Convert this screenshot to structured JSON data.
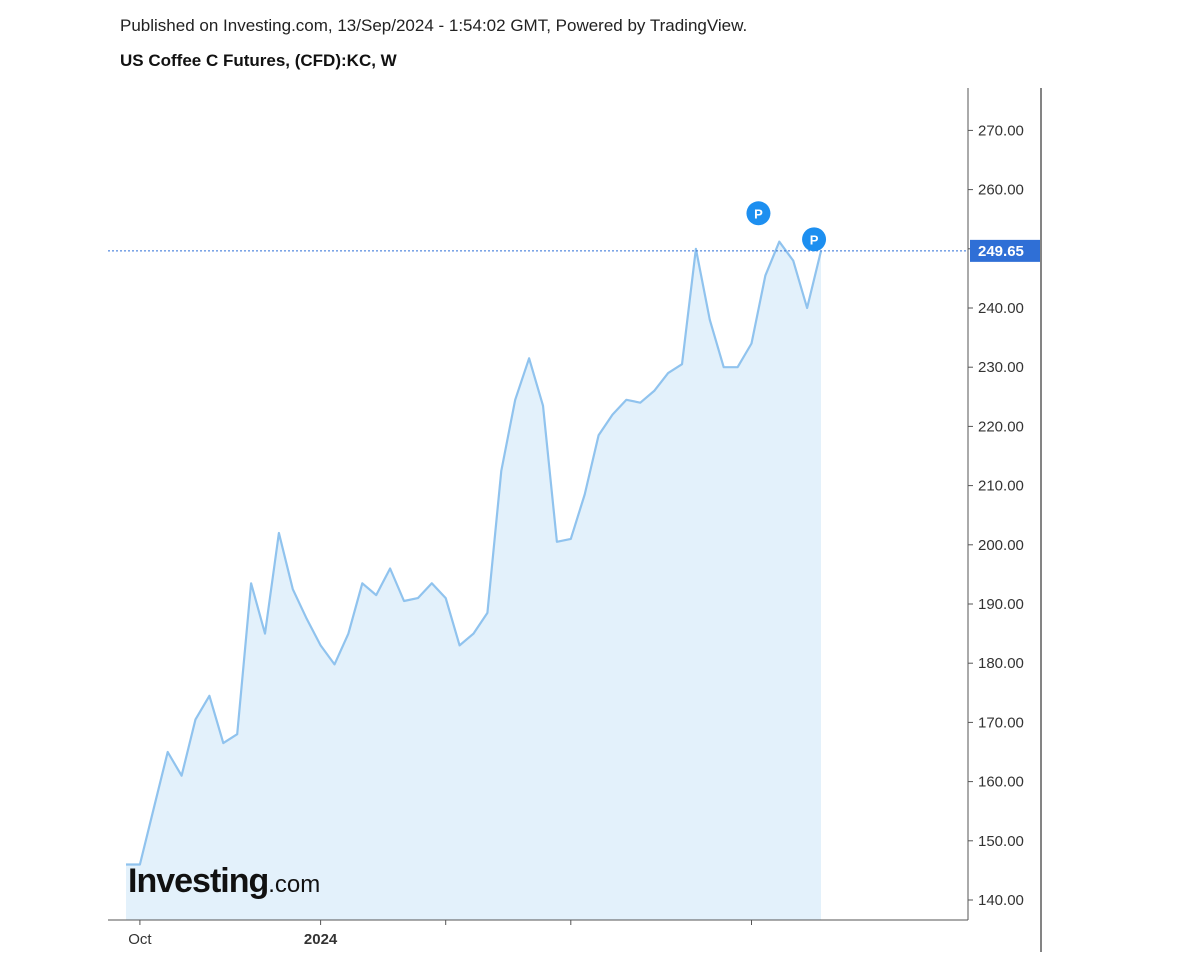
{
  "header": {
    "published": "Published on Investing.com, 13/Sep/2024 - 1:54:02 GMT, Powered by TradingView.",
    "title": "US Coffee C Futures, (CFD):KC, W"
  },
  "logo": {
    "brand": "Investing",
    "tld": ".com"
  },
  "chart_data": {
    "type": "area",
    "title": "US Coffee C Futures, (CFD):KC, W",
    "xlabel": "",
    "ylabel": "",
    "ylim": [
      134,
      280
    ],
    "y_ticks": [
      "140.00",
      "150.00",
      "160.00",
      "170.00",
      "180.00",
      "190.00",
      "200.00",
      "210.00",
      "220.00",
      "230.00",
      "240.00",
      "250.00",
      "260.00",
      "270.00"
    ],
    "x_ticks": [
      {
        "label": "Oct",
        "week": 1,
        "bold": false
      },
      {
        "label": "2024",
        "week": 14,
        "bold": true
      },
      {
        "label": "",
        "week": 23,
        "bold": false
      },
      {
        "label": "",
        "week": 32,
        "bold": false
      },
      {
        "label": "",
        "week": 45,
        "bold": false
      }
    ],
    "last_price": {
      "value": 249.65,
      "label": "249.65"
    },
    "markers": [
      {
        "week": 45.5,
        "value": 256.0,
        "label": "P"
      },
      {
        "week": 49.5,
        "value": 251.6,
        "label": "P"
      }
    ],
    "line_color": "#90c3ee",
    "fill_color": "#e3f1fb",
    "accent_color": "#2f6fd6",
    "marker_color": "#1d8ff0",
    "series": [
      {
        "x": [
          0,
          1,
          2,
          3,
          4,
          5,
          6,
          7,
          8,
          9,
          10,
          11,
          12,
          13,
          14,
          15,
          16,
          17,
          18,
          19,
          20,
          21,
          22,
          23,
          24,
          25,
          26,
          27,
          28,
          29,
          30,
          31,
          32,
          33,
          34,
          35,
          36,
          37,
          38,
          39,
          40,
          41,
          42,
          43,
          44,
          45,
          46,
          47,
          48,
          49,
          50
        ],
        "values": [
          146,
          146,
          155.5,
          165,
          161,
          170.5,
          174.5,
          166.5,
          168,
          193.5,
          185,
          202,
          192.5,
          187.5,
          183,
          179.8,
          185,
          193.5,
          191.5,
          196,
          190.5,
          191,
          193.5,
          191,
          183,
          185,
          188.5,
          212.5,
          224.5,
          231.5,
          223.5,
          200.5,
          201,
          208.5,
          218.5,
          222,
          224.5,
          224,
          226,
          229,
          230.5,
          250,
          238,
          230,
          230,
          234,
          245.5,
          251.2,
          248,
          240,
          249.65
        ]
      }
    ]
  }
}
